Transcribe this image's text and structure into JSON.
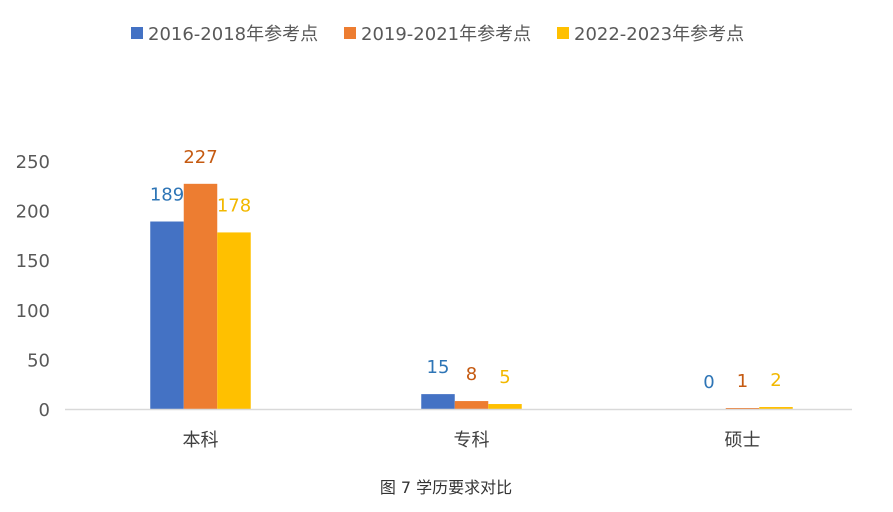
{
  "chart_data": {
    "type": "bar",
    "title": "图 7 学历要求对比",
    "xlabel": "",
    "ylabel": "",
    "categories": [
      "本科",
      "专科",
      "硕士"
    ],
    "series": [
      {
        "name": "2016-2018年参考点",
        "values": [
          189,
          15,
          0
        ],
        "color": "#4472C4",
        "label_color": "#2E75B6"
      },
      {
        "name": "2019-2021年参考点",
        "values": [
          227,
          8,
          1
        ],
        "color": "#ED7D31",
        "label_color": "#C55A11"
      },
      {
        "name": "2022-2023年参考点",
        "values": [
          178,
          5,
          2
        ],
        "color": "#FFC000",
        "label_color": "#F2B800"
      }
    ],
    "ylim": [
      0,
      250
    ],
    "yticks": [
      0,
      50,
      100,
      150,
      200,
      250
    ],
    "grid": false,
    "legend": "top-center",
    "data_labels": true
  }
}
